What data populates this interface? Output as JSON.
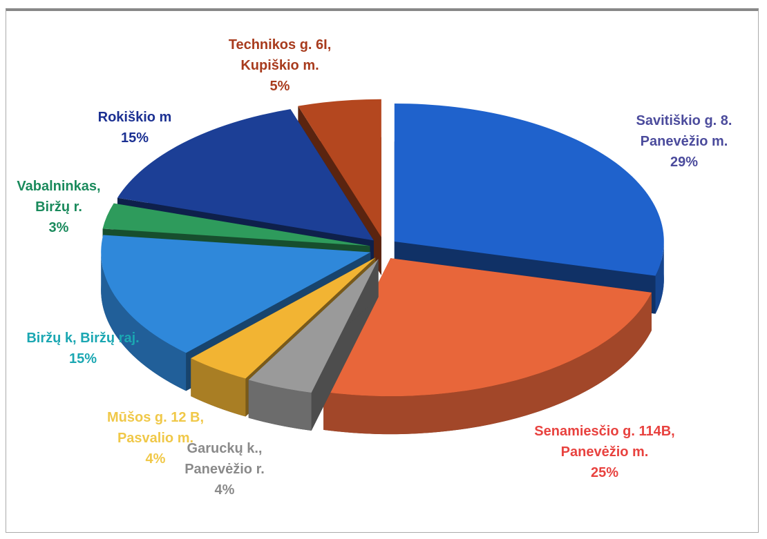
{
  "chart_data": {
    "type": "pie",
    "categories": [
      "Savitiškio g. 8. Panevėžio m.",
      "Senamiesčio g. 114B, Panevėžio m.",
      "Garuckų k., Panevėžio r.",
      "Mūšos g. 12 B, Pasvalio m.",
      "Biržų k, Biržų raj.",
      "Vabalninkas, Biržų r.",
      "Rokiškio m",
      "Technikos g. 6I, Kupiškio m."
    ],
    "values": [
      29,
      25,
      4,
      4,
      15,
      3,
      15,
      5
    ],
    "value_labels": [
      "29%",
      "25%",
      "4%",
      "4%",
      "15%",
      "3%",
      "15%",
      "5%"
    ],
    "colors": [
      "#1f62cc",
      "#e8663a",
      "#9a9a9a",
      "#f2b433",
      "#2f88da",
      "#2e9b5c",
      "#1c3f96",
      "#b4471f"
    ],
    "label_colors": [
      "#4b4b9c",
      "#e8423f",
      "#8a8a8a",
      "#f0c848",
      "#1ba7b2",
      "#1a8a5c",
      "#1b3092",
      "#a83b1d"
    ]
  }
}
